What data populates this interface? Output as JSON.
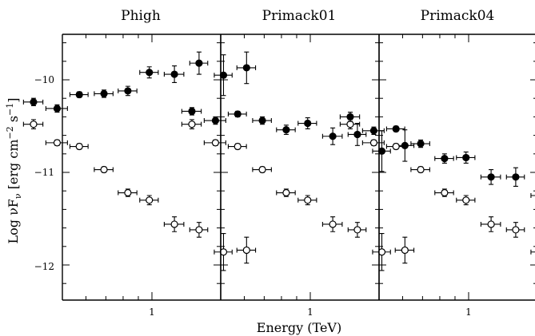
{
  "chart_data": [
    {
      "type": "scatter",
      "title": "Phigh",
      "xlabel": "Energy (TeV)",
      "ylabel": "Log νFν [erg cm⁻² s⁻¹]",
      "x_scale": "log",
      "xlim": [
        0.3,
        2.5
      ],
      "ylim": [
        -12.38,
        -9.48
      ],
      "x_ticks": [
        1
      ],
      "y_ticks": [
        -12,
        -11,
        -10
      ],
      "grid": false,
      "series": [
        {
          "marker": "open-circle",
          "points": [
            {
              "x": 0.4,
              "y": -10.48,
              "xerr": [
                0.03,
                0.03
              ],
              "yerr": 0.05
            },
            {
              "x": 0.48,
              "y": -10.68,
              "xerr": [
                0.04,
                0.04
              ],
              "yerr": 0.03
            },
            {
              "x": 0.57,
              "y": -10.72,
              "xerr": [
                0.04,
                0.04
              ],
              "yerr": 0.03
            },
            {
              "x": 0.69,
              "y": -10.97,
              "xerr": [
                0.05,
                0.05
              ],
              "yerr": 0.03
            },
            {
              "x": 0.83,
              "y": -11.22,
              "xerr": [
                0.06,
                0.06
              ],
              "yerr": 0.04
            },
            {
              "x": 0.98,
              "y": -11.3,
              "xerr": [
                0.07,
                0.07
              ],
              "yerr": 0.05
            },
            {
              "x": 1.19,
              "y": -11.56,
              "xerr": [
                0.09,
                0.09
              ],
              "yerr": 0.08
            },
            {
              "x": 1.44,
              "y": -11.62,
              "xerr": [
                0.1,
                0.1
              ],
              "yerr": 0.08
            },
            {
              "x": 1.74,
              "y": -11.86,
              "xerr": [
                0.12,
                0.12
              ],
              "yerr": 0.2
            },
            {
              "x": 2.08,
              "y": -11.84,
              "xerr": [
                0.15,
                0.15
              ],
              "yerr": 0.14
            }
          ]
        },
        {
          "marker": "filled-circle",
          "points": [
            {
              "x": 0.4,
              "y": -10.24,
              "xerr": [
                0.03,
                0.03
              ],
              "yerr": 0.04
            },
            {
              "x": 0.48,
              "y": -10.31,
              "xerr": [
                0.04,
                0.04
              ],
              "yerr": 0.04
            },
            {
              "x": 0.57,
              "y": -10.16,
              "xerr": [
                0.04,
                0.04
              ],
              "yerr": 0.03
            },
            {
              "x": 0.69,
              "y": -10.15,
              "xerr": [
                0.05,
                0.05
              ],
              "yerr": 0.04
            },
            {
              "x": 0.83,
              "y": -10.12,
              "xerr": [
                0.06,
                0.06
              ],
              "yerr": 0.05
            },
            {
              "x": 0.98,
              "y": -9.92,
              "xerr": [
                0.07,
                0.07
              ],
              "yerr": 0.06
            },
            {
              "x": 1.19,
              "y": -9.94,
              "xerr": [
                0.09,
                0.09
              ],
              "yerr": 0.09
            },
            {
              "x": 1.44,
              "y": -9.82,
              "xerr": [
                0.1,
                0.1
              ],
              "yerr": 0.12
            },
            {
              "x": 1.74,
              "y": -9.95,
              "xerr": [
                0.12,
                0.12
              ],
              "yerr": 0.22
            },
            {
              "x": 2.08,
              "y": -9.87,
              "xerr": [
                0.15,
                0.15
              ],
              "yerr": 0.17
            }
          ]
        }
      ]
    },
    {
      "type": "scatter",
      "title": "Primack01",
      "xlabel": "Energy (TeV)",
      "ylabel": "",
      "x_scale": "log",
      "xlim": [
        0.3,
        2.5
      ],
      "ylim": [
        -12.38,
        -9.48
      ],
      "x_ticks": [
        1
      ],
      "y_ticks": [
        -12,
        -11,
        -10
      ],
      "grid": false,
      "series": [
        {
          "marker": "open-circle",
          "points": [
            {
              "x": 0.4,
              "y": -10.48,
              "xerr": [
                0.03,
                0.03
              ],
              "yerr": 0.05
            },
            {
              "x": 0.48,
              "y": -10.68,
              "xerr": [
                0.04,
                0.04
              ],
              "yerr": 0.03
            },
            {
              "x": 0.57,
              "y": -10.72,
              "xerr": [
                0.04,
                0.04
              ],
              "yerr": 0.03
            },
            {
              "x": 0.69,
              "y": -10.97,
              "xerr": [
                0.05,
                0.05
              ],
              "yerr": 0.03
            },
            {
              "x": 0.83,
              "y": -11.22,
              "xerr": [
                0.06,
                0.06
              ],
              "yerr": 0.04
            },
            {
              "x": 0.98,
              "y": -11.3,
              "xerr": [
                0.07,
                0.07
              ],
              "yerr": 0.05
            },
            {
              "x": 1.19,
              "y": -11.56,
              "xerr": [
                0.09,
                0.09
              ],
              "yerr": 0.08
            },
            {
              "x": 1.44,
              "y": -11.62,
              "xerr": [
                0.1,
                0.1
              ],
              "yerr": 0.08
            },
            {
              "x": 1.74,
              "y": -11.86,
              "xerr": [
                0.12,
                0.12
              ],
              "yerr": 0.2
            },
            {
              "x": 2.08,
              "y": -11.84,
              "xerr": [
                0.15,
                0.15
              ],
              "yerr": 0.14
            }
          ]
        },
        {
          "marker": "filled-circle",
          "points": [
            {
              "x": 0.4,
              "y": -10.34,
              "xerr": [
                0.03,
                0.03
              ],
              "yerr": 0.04
            },
            {
              "x": 0.48,
              "y": -10.44,
              "xerr": [
                0.04,
                0.04
              ],
              "yerr": 0.04
            },
            {
              "x": 0.57,
              "y": -10.37,
              "xerr": [
                0.04,
                0.04
              ],
              "yerr": 0.03
            },
            {
              "x": 0.69,
              "y": -10.44,
              "xerr": [
                0.05,
                0.05
              ],
              "yerr": 0.04
            },
            {
              "x": 0.83,
              "y": -10.54,
              "xerr": [
                0.06,
                0.06
              ],
              "yerr": 0.05
            },
            {
              "x": 0.98,
              "y": -10.47,
              "xerr": [
                0.07,
                0.07
              ],
              "yerr": 0.06
            },
            {
              "x": 1.19,
              "y": -10.61,
              "xerr": [
                0.09,
                0.09
              ],
              "yerr": 0.09
            },
            {
              "x": 1.44,
              "y": -10.59,
              "xerr": [
                0.1,
                0.1
              ],
              "yerr": 0.12
            },
            {
              "x": 1.74,
              "y": -10.77,
              "xerr": [
                0.12,
                0.12
              ],
              "yerr": 0.22
            },
            {
              "x": 2.08,
              "y": -10.71,
              "xerr": [
                0.15,
                0.15
              ],
              "yerr": 0.17
            }
          ]
        }
      ]
    },
    {
      "type": "scatter",
      "title": "Primack04",
      "xlabel": "Energy (TeV)",
      "ylabel": "",
      "x_scale": "log",
      "xlim": [
        0.3,
        2.5
      ],
      "ylim": [
        -12.38,
        -9.48
      ],
      "x_ticks": [
        1
      ],
      "y_ticks": [
        -12,
        -11,
        -10
      ],
      "grid": false,
      "series": [
        {
          "marker": "open-circle",
          "points": [
            {
              "x": 0.4,
              "y": -10.48,
              "xerr": [
                0.03,
                0.03
              ],
              "yerr": 0.05
            },
            {
              "x": 0.48,
              "y": -10.68,
              "xerr": [
                0.04,
                0.04
              ],
              "yerr": 0.03
            },
            {
              "x": 0.57,
              "y": -10.72,
              "xerr": [
                0.04,
                0.04
              ],
              "yerr": 0.03
            },
            {
              "x": 0.69,
              "y": -10.97,
              "xerr": [
                0.05,
                0.05
              ],
              "yerr": 0.03
            },
            {
              "x": 0.83,
              "y": -11.22,
              "xerr": [
                0.06,
                0.06
              ],
              "yerr": 0.04
            },
            {
              "x": 0.98,
              "y": -11.3,
              "xerr": [
                0.07,
                0.07
              ],
              "yerr": 0.05
            },
            {
              "x": 1.19,
              "y": -11.56,
              "xerr": [
                0.09,
                0.09
              ],
              "yerr": 0.08
            },
            {
              "x": 1.44,
              "y": -11.62,
              "xerr": [
                0.1,
                0.1
              ],
              "yerr": 0.08
            },
            {
              "x": 1.74,
              "y": -11.86,
              "xerr": [
                0.12,
                0.12
              ],
              "yerr": 0.2
            },
            {
              "x": 2.08,
              "y": -11.84,
              "xerr": [
                0.15,
                0.15
              ],
              "yerr": 0.14
            }
          ]
        },
        {
          "marker": "filled-circle",
          "points": [
            {
              "x": 0.4,
              "y": -10.4,
              "xerr": [
                0.03,
                0.03
              ],
              "yerr": 0.05
            },
            {
              "x": 0.48,
              "y": -10.55,
              "xerr": [
                0.04,
                0.04
              ],
              "yerr": 0.04
            },
            {
              "x": 0.57,
              "y": -10.53,
              "xerr": [
                0.04,
                0.04
              ],
              "yerr": 0.03
            },
            {
              "x": 0.69,
              "y": -10.69,
              "xerr": [
                0.05,
                0.05
              ],
              "yerr": 0.04
            },
            {
              "x": 0.83,
              "y": -10.85,
              "xerr": [
                0.06,
                0.06
              ],
              "yerr": 0.05
            },
            {
              "x": 0.98,
              "y": -10.84,
              "xerr": [
                0.07,
                0.07
              ],
              "yerr": 0.06
            },
            {
              "x": 1.19,
              "y": -11.05,
              "xerr": [
                0.09,
                0.09
              ],
              "yerr": 0.08
            },
            {
              "x": 1.44,
              "y": -11.05,
              "xerr": [
                0.1,
                0.1
              ],
              "yerr": 0.1
            },
            {
              "x": 1.74,
              "y": -11.25,
              "xerr": [
                0.12,
                0.12
              ],
              "yerr": 0.18
            },
            {
              "x": 2.08,
              "y": -11.2,
              "xerr": [
                0.15,
                0.15
              ],
              "yerr": 0.17
            }
          ]
        }
      ]
    }
  ],
  "labels": {
    "panel_titles": [
      "Phigh",
      "Primack01",
      "Primack04"
    ],
    "x_tick_label": "1",
    "y_tick_labels": [
      "−12",
      "−11",
      "−10"
    ],
    "xlabel": "Energy (TeV)"
  }
}
